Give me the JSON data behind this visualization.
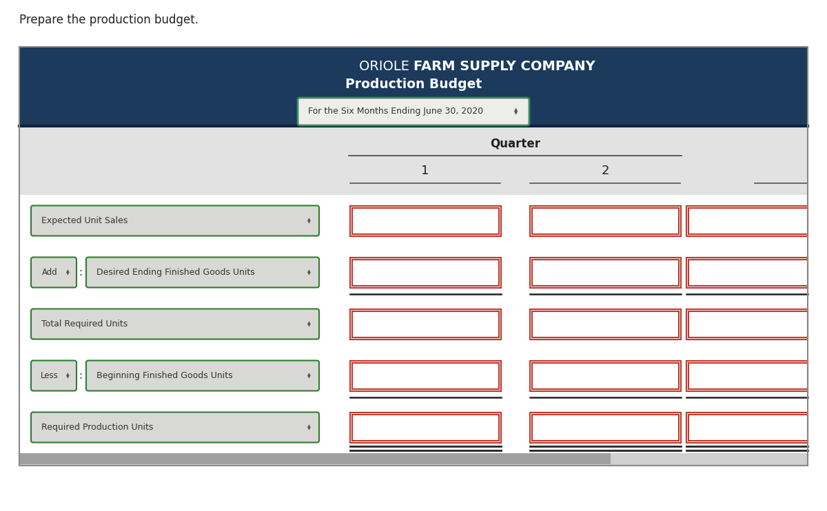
{
  "top_text": "Prepare the production budget.",
  "title_normal": "ORIOLE ",
  "title_bold": "FARM SUPPLY COMPANY",
  "title_line2": "Production Budget",
  "subtitle": "For the Six Months Ending June 30, 2020",
  "quarter_label": "Quarter",
  "col_numbers": [
    "1",
    "2"
  ],
  "rows": [
    {
      "label": "Expected Unit Sales",
      "prefix": "",
      "underline": false,
      "double_underline": false
    },
    {
      "label": "Desired Ending Finished Goods Units",
      "prefix": "Add",
      "underline": true,
      "double_underline": false
    },
    {
      "label": "Total Required Units",
      "prefix": "",
      "underline": false,
      "double_underline": false
    },
    {
      "label": "Beginning Finished Goods Units",
      "prefix": "Less",
      "underline": true,
      "double_underline": false
    },
    {
      "label": "Required Production Units",
      "prefix": "",
      "underline": false,
      "double_underline": true
    }
  ],
  "header_bg": "#1b3a5c",
  "header_text_color": "#ffffff",
  "subheader_bg": "#e2e2e2",
  "body_bg": "#ffffff",
  "input_border_outer": "#c0392b",
  "input_border_inner": "#c0392b",
  "dropdown_border_color": "#2e7d32",
  "dropdown_bg": "#d8d8d4",
  "figure_bg": "#ffffff",
  "scrollbar_bg": "#b0b0b0",
  "table_border": "#888888"
}
